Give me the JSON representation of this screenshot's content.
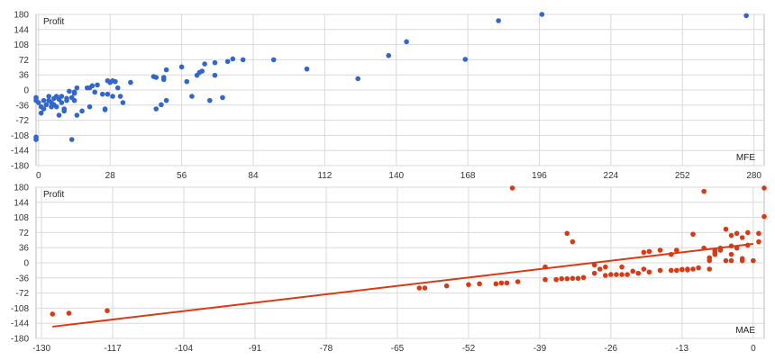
{
  "colors": {
    "background": "#ffffff",
    "grid": "#d9d9d9",
    "frame": "#b8b8b8",
    "mfe_points": "#3366cc",
    "mae_points": "#dc3912",
    "trendline": "#dc3912"
  },
  "chart_data": [
    {
      "type": "scatter",
      "ylabel": "Profit",
      "xlabel": "MFE",
      "xlim": [
        -1,
        284
      ],
      "ylim": [
        -180,
        180
      ],
      "grid": true,
      "x_ticks": [
        "0",
        "28",
        "56",
        "84",
        "112",
        "140",
        "168",
        "196",
        "224",
        "252",
        "280"
      ],
      "y_ticks": [
        "180",
        "144",
        "108",
        "72",
        "36",
        "0",
        "-36",
        "-72",
        "-108",
        "-144",
        "-180"
      ],
      "color": "#3366cc",
      "points": [
        [
          -1,
          -118
        ],
        [
          -1,
          -112
        ],
        [
          -1,
          -18
        ],
        [
          -1,
          -25
        ],
        [
          0,
          -30
        ],
        [
          1,
          -55
        ],
        [
          1,
          -40
        ],
        [
          2,
          -25
        ],
        [
          2,
          -45
        ],
        [
          3,
          -35
        ],
        [
          4,
          -25
        ],
        [
          4,
          -15
        ],
        [
          5,
          -30
        ],
        [
          5,
          -40
        ],
        [
          6,
          -20
        ],
        [
          6,
          -35
        ],
        [
          7,
          -15
        ],
        [
          7,
          -40
        ],
        [
          8,
          -22
        ],
        [
          8,
          -60
        ],
        [
          9,
          -30
        ],
        [
          9,
          -15
        ],
        [
          10,
          -50
        ],
        [
          10,
          -45
        ],
        [
          11,
          -25
        ],
        [
          11,
          -20
        ],
        [
          12,
          -3
        ],
        [
          13,
          -18
        ],
        [
          13,
          -118
        ],
        [
          14,
          -8
        ],
        [
          14,
          -5
        ],
        [
          14,
          -25
        ],
        [
          15,
          5
        ],
        [
          15,
          -60
        ],
        [
          17,
          -50
        ],
        [
          19,
          5
        ],
        [
          20,
          -40
        ],
        [
          20,
          5
        ],
        [
          21,
          10
        ],
        [
          22,
          -5
        ],
        [
          23,
          12
        ],
        [
          25,
          -10
        ],
        [
          26,
          -45
        ],
        [
          26,
          -47
        ],
        [
          27,
          22
        ],
        [
          27,
          -10
        ],
        [
          28,
          18
        ],
        [
          29,
          22
        ],
        [
          29,
          -15
        ],
        [
          30,
          20
        ],
        [
          31,
          5
        ],
        [
          32,
          -15
        ],
        [
          33,
          -30
        ],
        [
          36,
          18
        ],
        [
          45,
          32
        ],
        [
          46,
          30
        ],
        [
          46,
          -45
        ],
        [
          48,
          -35
        ],
        [
          49,
          25
        ],
        [
          49,
          30
        ],
        [
          50,
          -25
        ],
        [
          50,
          48
        ],
        [
          56,
          55
        ],
        [
          58,
          20
        ],
        [
          60,
          -15
        ],
        [
          62,
          35
        ],
        [
          63,
          42
        ],
        [
          64,
          45
        ],
        [
          65,
          62
        ],
        [
          67,
          -25
        ],
        [
          69,
          35
        ],
        [
          69,
          65
        ],
        [
          72,
          -18
        ],
        [
          74,
          68
        ],
        [
          76,
          74
        ],
        [
          80,
          72
        ],
        [
          92,
          72
        ],
        [
          105,
          50
        ],
        [
          125,
          27
        ],
        [
          137,
          82
        ],
        [
          144,
          115
        ],
        [
          167,
          73
        ],
        [
          180,
          165
        ],
        [
          197,
          180
        ],
        [
          277,
          177
        ]
      ]
    },
    {
      "type": "scatter",
      "ylabel": "Profit",
      "xlabel": "MAE",
      "xlim": [
        -131,
        2
      ],
      "ylim": [
        -180,
        180
      ],
      "grid": true,
      "x_ticks": [
        "-130",
        "-117",
        "-104",
        "-91",
        "-78",
        "-65",
        "-52",
        "-39",
        "-26",
        "-13",
        "0"
      ],
      "y_ticks": [
        "180",
        "144",
        "108",
        "72",
        "36",
        "0",
        "-36",
        "-72",
        "-108",
        "-144",
        "-180"
      ],
      "color": "#dc3912",
      "trendline": {
        "x": [
          -128,
          0
        ],
        "y": [
          -152,
          45
        ]
      },
      "points": [
        [
          -128,
          -122
        ],
        [
          -125,
          -120
        ],
        [
          -118,
          -114
        ],
        [
          -61,
          -60
        ],
        [
          -60,
          -60
        ],
        [
          -56,
          -55
        ],
        [
          -52,
          -52
        ],
        [
          -50,
          -50
        ],
        [
          -47,
          -50
        ],
        [
          -46,
          -48
        ],
        [
          -45,
          -48
        ],
        [
          -44,
          178
        ],
        [
          -43,
          -45
        ],
        [
          -38,
          -10
        ],
        [
          -38,
          -40
        ],
        [
          -36,
          -40
        ],
        [
          -35,
          -38
        ],
        [
          -34,
          -38
        ],
        [
          -33,
          -37
        ],
        [
          -32,
          -37
        ],
        [
          -31,
          -35
        ],
        [
          -34,
          70
        ],
        [
          -33,
          50
        ],
        [
          -29,
          -25
        ],
        [
          -29,
          -5
        ],
        [
          -28,
          -15
        ],
        [
          -27,
          -10
        ],
        [
          -27,
          -30
        ],
        [
          -26,
          -28
        ],
        [
          -25,
          -28
        ],
        [
          -24,
          -28
        ],
        [
          -24,
          -10
        ],
        [
          -23,
          -28
        ],
        [
          -22,
          -20
        ],
        [
          -21,
          -25
        ],
        [
          -20,
          -15
        ],
        [
          -20,
          25
        ],
        [
          -19,
          27
        ],
        [
          -19,
          -22
        ],
        [
          -17,
          -18
        ],
        [
          -17,
          30
        ],
        [
          -15,
          -18
        ],
        [
          -15,
          20
        ],
        [
          -14,
          -18
        ],
        [
          -14,
          30
        ],
        [
          -13,
          -16
        ],
        [
          -13,
          -16
        ],
        [
          -12,
          -17
        ],
        [
          -12,
          -15
        ],
        [
          -11,
          -15
        ],
        [
          -11,
          68
        ],
        [
          -10,
          -12
        ],
        [
          -9,
          170
        ],
        [
          -9,
          35
        ],
        [
          -8,
          -15
        ],
        [
          -8,
          12
        ],
        [
          -8,
          5
        ],
        [
          -7,
          30
        ],
        [
          -7,
          20
        ],
        [
          -7,
          25
        ],
        [
          -6,
          35
        ],
        [
          -6,
          30
        ],
        [
          -5,
          5
        ],
        [
          -5,
          80
        ],
        [
          -4,
          65
        ],
        [
          -4,
          40
        ],
        [
          -4,
          5
        ],
        [
          -3,
          70
        ],
        [
          -3,
          35
        ],
        [
          -2,
          60
        ],
        [
          -2,
          10
        ],
        [
          -2,
          5
        ],
        [
          -1,
          72
        ],
        [
          -1,
          42
        ],
        [
          0,
          5
        ],
        [
          1,
          70
        ],
        [
          1,
          50
        ],
        [
          2,
          110
        ],
        [
          2,
          178
        ],
        [
          -4,
          20
        ]
      ]
    }
  ]
}
